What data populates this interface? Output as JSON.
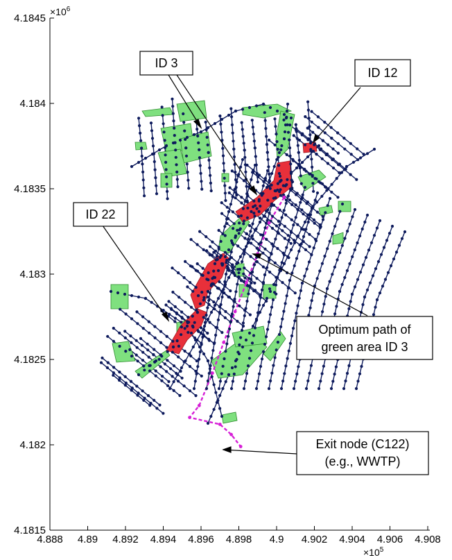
{
  "colors": {
    "network": "#0d1a5c",
    "node": "#0d1a5c",
    "green_area": "#7fe07f",
    "green_outline": "#2e8b2e",
    "selected_area": "#e8303a",
    "optimum_path": "#d61fd6"
  },
  "axes": {
    "x_ticks": [
      "4.888",
      "4.89",
      "4.892",
      "4.894",
      "4.896",
      "4.898",
      "4.9",
      "4.902",
      "4.904",
      "4.906",
      "4.908"
    ],
    "y_ticks": [
      "4.1845",
      "4.184",
      "4.1835",
      "4.183",
      "4.1825",
      "4.182",
      "4.1815"
    ],
    "x_multiplier_base": "×10",
    "x_multiplier_exp": "5",
    "y_multiplier_base": "×10",
    "y_multiplier_exp": "6",
    "xlim": [
      488800,
      490800
    ],
    "ylim": [
      4181500,
      4184500
    ]
  },
  "callouts": {
    "id3": "ID 3",
    "id12": "ID 12",
    "id22": "ID 22",
    "optimum_line1": "Optimum path of",
    "optimum_line2": "green area ID 3",
    "exit_line1": "Exit node (C122)",
    "exit_line2": "(e.g., WWTP)"
  },
  "map": {
    "exit_node": "C122",
    "optimum_path": [
      [
        490040,
        4183450
      ],
      [
        489960,
        4183300
      ],
      [
        489900,
        4183120
      ],
      [
        489840,
        4182950
      ],
      [
        489780,
        4182780
      ],
      [
        489720,
        4182600
      ],
      [
        489660,
        4182420
      ],
      [
        489590,
        4182230
      ],
      [
        489540,
        4182160
      ],
      [
        489700,
        4182120
      ],
      [
        489760,
        4182060
      ],
      [
        489810,
        4181990
      ]
    ]
  }
}
